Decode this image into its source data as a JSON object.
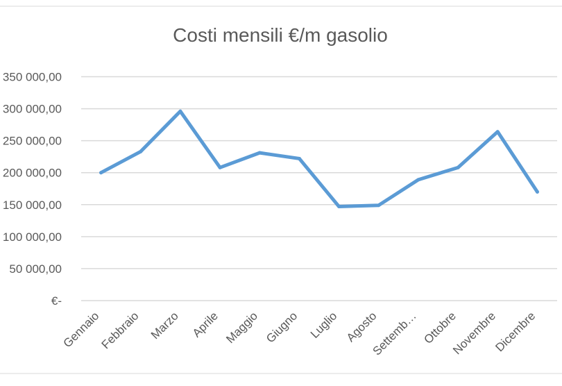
{
  "chart_data": {
    "type": "line",
    "title": "Costi mensili €/m gasolio",
    "categories": [
      "Gennaio",
      "Febbraio",
      "Marzo",
      "Aprile",
      "Maggio",
      "Giugno",
      "Luglio",
      "Agosto",
      "Settemb…",
      "Ottobre",
      "Novembre",
      "Dicembre"
    ],
    "series": [
      {
        "values": [
          200000,
          233000,
          296000,
          208000,
          231000,
          222000,
          147000,
          149000,
          189000,
          208000,
          264000,
          170000
        ]
      }
    ],
    "y_tick_labels": [
      "€-",
      "50 000,00",
      "100 000,00",
      "150 000,00",
      "200 000,00",
      "250 000,00",
      "300 000,00",
      "350 000,00"
    ],
    "ylim": [
      0,
      350000
    ],
    "ytick_step": 50000,
    "grid": true,
    "legend": "none",
    "colors": {
      "line": "#5B9BD5",
      "grid": "#D9D9D9",
      "text": "#595959",
      "frame": "#D9D9D9"
    }
  }
}
